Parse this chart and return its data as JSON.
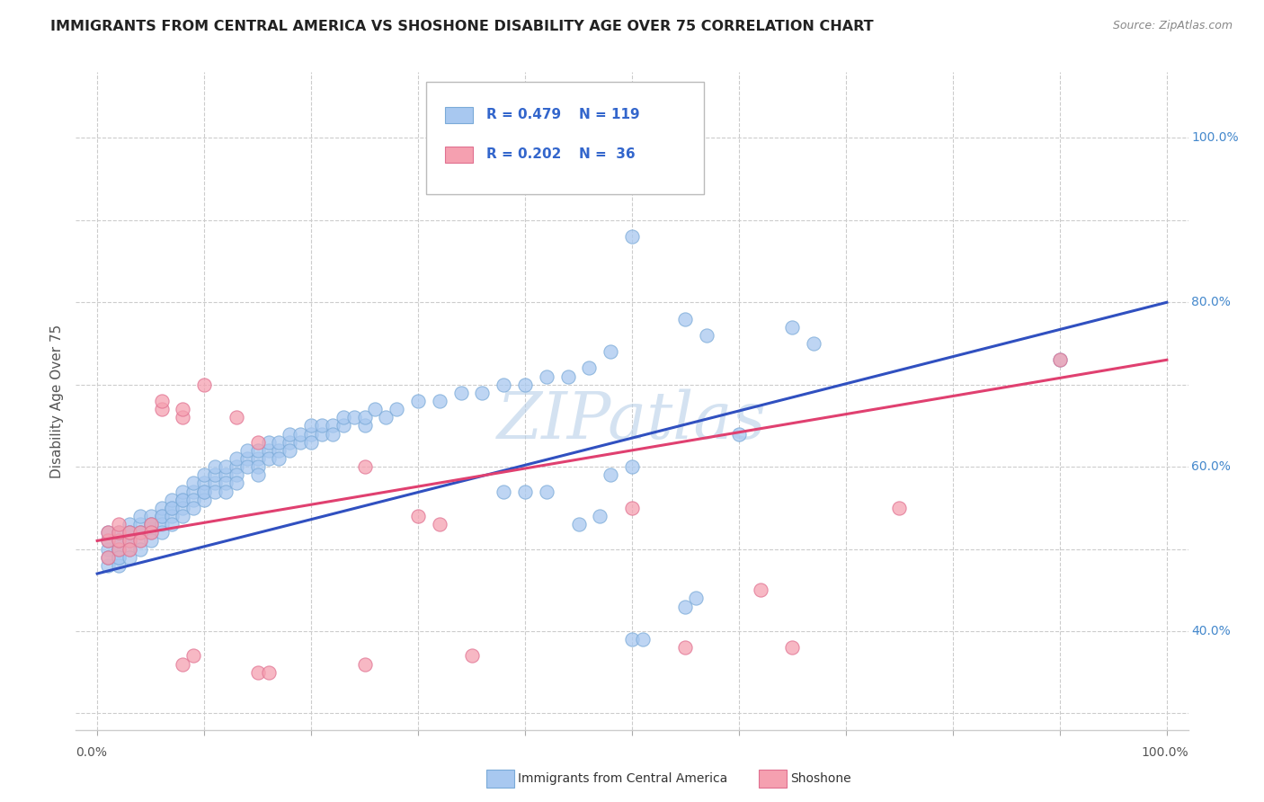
{
  "title": "IMMIGRANTS FROM CENTRAL AMERICA VS SHOSHONE DISABILITY AGE OVER 75 CORRELATION CHART",
  "source": "Source: ZipAtlas.com",
  "ylabel": "Disability Age Over 75",
  "watermark": "ZIPatlas",
  "legend_blue_label": "Immigrants from Central America",
  "legend_pink_label": "Shoshone",
  "blue_color": "#a8c8f0",
  "pink_color": "#f5a0b0",
  "blue_edge_color": "#7aaad8",
  "pink_edge_color": "#e07090",
  "blue_line_color": "#3050c0",
  "pink_line_color": "#e04070",
  "background_color": "#ffffff",
  "plot_bg_color": "#ffffff",
  "title_color": "#222222",
  "R_N_color": "#3366cc",
  "right_label_color": "#4488cc",
  "blue_scatter": [
    [
      0.01,
      0.48
    ],
    [
      0.01,
      0.5
    ],
    [
      0.01,
      0.51
    ],
    [
      0.01,
      0.49
    ],
    [
      0.01,
      0.52
    ],
    [
      0.02,
      0.5
    ],
    [
      0.02,
      0.49
    ],
    [
      0.02,
      0.51
    ],
    [
      0.02,
      0.48
    ],
    [
      0.02,
      0.52
    ],
    [
      0.02,
      0.5
    ],
    [
      0.02,
      0.51
    ],
    [
      0.02,
      0.49
    ],
    [
      0.03,
      0.51
    ],
    [
      0.03,
      0.52
    ],
    [
      0.03,
      0.5
    ],
    [
      0.03,
      0.53
    ],
    [
      0.03,
      0.49
    ],
    [
      0.03,
      0.51
    ],
    [
      0.03,
      0.52
    ],
    [
      0.04,
      0.52
    ],
    [
      0.04,
      0.51
    ],
    [
      0.04,
      0.53
    ],
    [
      0.04,
      0.5
    ],
    [
      0.04,
      0.54
    ],
    [
      0.04,
      0.52
    ],
    [
      0.05,
      0.53
    ],
    [
      0.05,
      0.52
    ],
    [
      0.05,
      0.54
    ],
    [
      0.05,
      0.51
    ],
    [
      0.05,
      0.53
    ],
    [
      0.06,
      0.54
    ],
    [
      0.06,
      0.53
    ],
    [
      0.06,
      0.55
    ],
    [
      0.06,
      0.52
    ],
    [
      0.06,
      0.54
    ],
    [
      0.07,
      0.55
    ],
    [
      0.07,
      0.54
    ],
    [
      0.07,
      0.56
    ],
    [
      0.07,
      0.53
    ],
    [
      0.07,
      0.55
    ],
    [
      0.08,
      0.56
    ],
    [
      0.08,
      0.55
    ],
    [
      0.08,
      0.57
    ],
    [
      0.08,
      0.54
    ],
    [
      0.08,
      0.56
    ],
    [
      0.09,
      0.57
    ],
    [
      0.09,
      0.56
    ],
    [
      0.09,
      0.58
    ],
    [
      0.09,
      0.55
    ],
    [
      0.1,
      0.57
    ],
    [
      0.1,
      0.58
    ],
    [
      0.1,
      0.56
    ],
    [
      0.1,
      0.59
    ],
    [
      0.1,
      0.57
    ],
    [
      0.11,
      0.58
    ],
    [
      0.11,
      0.59
    ],
    [
      0.11,
      0.57
    ],
    [
      0.11,
      0.6
    ],
    [
      0.12,
      0.59
    ],
    [
      0.12,
      0.58
    ],
    [
      0.12,
      0.6
    ],
    [
      0.12,
      0.57
    ],
    [
      0.13,
      0.6
    ],
    [
      0.13,
      0.59
    ],
    [
      0.13,
      0.61
    ],
    [
      0.13,
      0.58
    ],
    [
      0.14,
      0.61
    ],
    [
      0.14,
      0.6
    ],
    [
      0.14,
      0.62
    ],
    [
      0.15,
      0.61
    ],
    [
      0.15,
      0.6
    ],
    [
      0.15,
      0.62
    ],
    [
      0.15,
      0.59
    ],
    [
      0.16,
      0.62
    ],
    [
      0.16,
      0.61
    ],
    [
      0.16,
      0.63
    ],
    [
      0.17,
      0.62
    ],
    [
      0.17,
      0.61
    ],
    [
      0.17,
      0.63
    ],
    [
      0.18,
      0.63
    ],
    [
      0.18,
      0.62
    ],
    [
      0.18,
      0.64
    ],
    [
      0.19,
      0.63
    ],
    [
      0.19,
      0.64
    ],
    [
      0.2,
      0.64
    ],
    [
      0.2,
      0.63
    ],
    [
      0.2,
      0.65
    ],
    [
      0.21,
      0.64
    ],
    [
      0.21,
      0.65
    ],
    [
      0.22,
      0.65
    ],
    [
      0.22,
      0.64
    ],
    [
      0.23,
      0.65
    ],
    [
      0.23,
      0.66
    ],
    [
      0.24,
      0.66
    ],
    [
      0.25,
      0.65
    ],
    [
      0.25,
      0.66
    ],
    [
      0.26,
      0.67
    ],
    [
      0.27,
      0.66
    ],
    [
      0.28,
      0.67
    ],
    [
      0.3,
      0.68
    ],
    [
      0.32,
      0.68
    ],
    [
      0.34,
      0.69
    ],
    [
      0.36,
      0.69
    ],
    [
      0.38,
      0.7
    ],
    [
      0.4,
      0.7
    ],
    [
      0.42,
      0.71
    ],
    [
      0.44,
      0.71
    ],
    [
      0.46,
      0.72
    ],
    [
      0.38,
      0.57
    ],
    [
      0.4,
      0.57
    ],
    [
      0.42,
      0.57
    ],
    [
      0.48,
      0.59
    ],
    [
      0.5,
      0.6
    ],
    [
      0.45,
      0.53
    ],
    [
      0.47,
      0.54
    ],
    [
      0.5,
      0.39
    ],
    [
      0.51,
      0.39
    ],
    [
      0.55,
      0.43
    ],
    [
      0.56,
      0.44
    ],
    [
      0.48,
      0.74
    ],
    [
      0.55,
      0.78
    ],
    [
      0.57,
      0.76
    ],
    [
      0.6,
      0.64
    ],
    [
      0.65,
      0.77
    ],
    [
      0.67,
      0.75
    ],
    [
      0.5,
      0.88
    ],
    [
      0.9,
      0.73
    ]
  ],
  "pink_scatter": [
    [
      0.01,
      0.49
    ],
    [
      0.01,
      0.51
    ],
    [
      0.01,
      0.52
    ],
    [
      0.02,
      0.5
    ],
    [
      0.02,
      0.51
    ],
    [
      0.02,
      0.52
    ],
    [
      0.02,
      0.53
    ],
    [
      0.03,
      0.51
    ],
    [
      0.03,
      0.52
    ],
    [
      0.03,
      0.5
    ],
    [
      0.04,
      0.52
    ],
    [
      0.04,
      0.51
    ],
    [
      0.05,
      0.53
    ],
    [
      0.05,
      0.52
    ],
    [
      0.06,
      0.67
    ],
    [
      0.06,
      0.68
    ],
    [
      0.08,
      0.66
    ],
    [
      0.08,
      0.67
    ],
    [
      0.1,
      0.7
    ],
    [
      0.13,
      0.66
    ],
    [
      0.15,
      0.63
    ],
    [
      0.25,
      0.36
    ],
    [
      0.08,
      0.36
    ],
    [
      0.09,
      0.37
    ],
    [
      0.15,
      0.35
    ],
    [
      0.16,
      0.35
    ],
    [
      0.25,
      0.6
    ],
    [
      0.3,
      0.54
    ],
    [
      0.32,
      0.53
    ],
    [
      0.35,
      0.37
    ],
    [
      0.5,
      0.55
    ],
    [
      0.55,
      0.38
    ],
    [
      0.62,
      0.45
    ],
    [
      0.65,
      0.38
    ],
    [
      0.75,
      0.55
    ],
    [
      0.9,
      0.73
    ]
  ],
  "blue_trend_x": [
    0.0,
    1.0
  ],
  "blue_trend_y": [
    0.47,
    0.8
  ],
  "pink_trend_x": [
    0.0,
    1.0
  ],
  "pink_trend_y": [
    0.51,
    0.73
  ],
  "xlim": [
    -0.02,
    1.02
  ],
  "ylim": [
    0.28,
    1.08
  ],
  "right_yticks": [
    0.4,
    0.6,
    0.8,
    1.0
  ],
  "right_ytick_labels": [
    "40.0%",
    "60.0%",
    "80.0%",
    "100.0%"
  ],
  "xtick_positions": [
    0.0,
    0.1,
    0.2,
    0.3,
    0.4,
    0.5,
    0.6,
    0.7,
    0.8,
    0.9,
    1.0
  ],
  "ytick_positions": [
    0.3,
    0.4,
    0.5,
    0.6,
    0.7,
    0.8,
    0.9,
    1.0
  ]
}
